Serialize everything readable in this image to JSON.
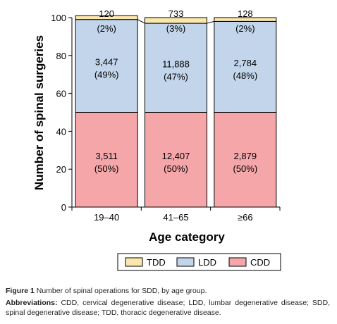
{
  "chart_data": {
    "type": "bar",
    "stacked": true,
    "normalized_percent": true,
    "categories": [
      "19–40",
      "41–65",
      "≥66"
    ],
    "xlabel": "Age category",
    "ylabel": "Number of spinal surgeries",
    "ylim": [
      0,
      100
    ],
    "yticks": [
      "0",
      "20",
      "40",
      "60",
      "80",
      "100"
    ],
    "series": [
      {
        "name": "CDD",
        "color": "#f4a6a9",
        "percent": [
          50,
          50,
          50
        ],
        "counts": [
          3511,
          12407,
          2879
        ],
        "labels": [
          "3,511",
          "12,407",
          "2,879"
        ],
        "pct_labels": [
          "(50%)",
          "(50%)",
          "(50%)"
        ]
      },
      {
        "name": "LDD",
        "color": "#c2d5ea",
        "percent": [
          49,
          47,
          48
        ],
        "counts": [
          3447,
          11888,
          2784
        ],
        "labels": [
          "3,447",
          "11,888",
          "2,784"
        ],
        "pct_labels": [
          "(49%)",
          "(47%)",
          "(48%)"
        ]
      },
      {
        "name": "TDD",
        "color": "#fbe7ad",
        "percent": [
          2,
          3,
          2
        ],
        "counts": [
          120,
          733,
          128
        ],
        "labels": [
          "120",
          "733",
          "128"
        ],
        "pct_labels": [
          "(2%)",
          "(3%)",
          "(2%)"
        ]
      }
    ],
    "legend": {
      "placement": "bottom",
      "order": [
        "TDD",
        "LDD",
        "CDD"
      ]
    },
    "grid": false
  },
  "caption": {
    "figure_label": "Figure 1",
    "figure_text": "Number of spinal operations for SDD, by age group.",
    "abbrev_label": "Abbreviations:",
    "abbrev_text": "CDD, cervical degenerative disease; LDD, lumbar degenerative disease; SDD, spinal degenerative disease; TDD, thoracic degenerative disease."
  }
}
